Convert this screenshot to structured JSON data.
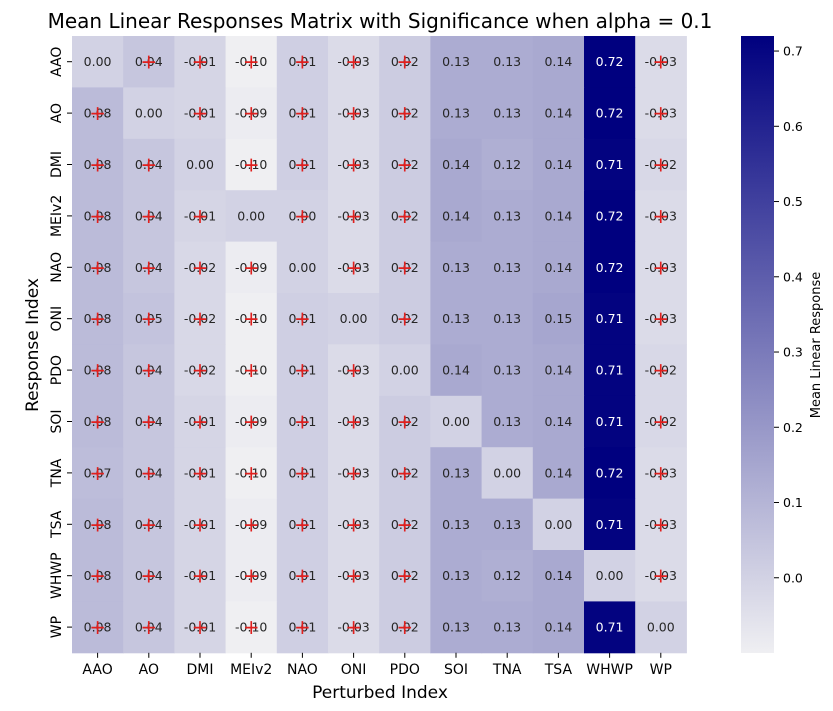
{
  "chart_data": {
    "type": "heatmap",
    "title": "Mean Linear Responses Matrix with Significance when alpha = 0.1",
    "xlabel": "Perturbed Index",
    "ylabel": "Response Index",
    "x_categories": [
      "AAO",
      "AO",
      "DMI",
      "MEIv2",
      "NAO",
      "ONI",
      "PDO",
      "SOI",
      "TNA",
      "TSA",
      "WHWP",
      "WP"
    ],
    "y_categories": [
      "AAO",
      "AO",
      "DMI",
      "MEIv2",
      "NAO",
      "ONI",
      "PDO",
      "SOI",
      "TNA",
      "TSA",
      "WHWP",
      "WP"
    ],
    "values": [
      [
        0.0,
        0.04,
        -0.01,
        -0.1,
        0.01,
        -0.03,
        0.02,
        0.13,
        0.13,
        0.14,
        0.72,
        -0.03
      ],
      [
        0.08,
        0.0,
        -0.01,
        -0.09,
        0.01,
        -0.03,
        0.02,
        0.13,
        0.13,
        0.14,
        0.72,
        -0.03
      ],
      [
        0.08,
        0.04,
        0.0,
        -0.1,
        0.01,
        -0.03,
        0.02,
        0.14,
        0.12,
        0.14,
        0.71,
        -0.02
      ],
      [
        0.08,
        0.04,
        -0.01,
        0.0,
        0.0,
        -0.03,
        0.02,
        0.14,
        0.13,
        0.14,
        0.72,
        -0.03
      ],
      [
        0.08,
        0.04,
        -0.02,
        -0.09,
        0.0,
        -0.03,
        0.02,
        0.13,
        0.13,
        0.14,
        0.72,
        -0.03
      ],
      [
        0.08,
        0.05,
        -0.02,
        -0.1,
        0.01,
        0.0,
        0.02,
        0.13,
        0.13,
        0.15,
        0.71,
        -0.03
      ],
      [
        0.08,
        0.04,
        -0.02,
        -0.1,
        0.01,
        -0.03,
        0.0,
        0.14,
        0.13,
        0.14,
        0.71,
        -0.02
      ],
      [
        0.08,
        0.04,
        -0.01,
        -0.09,
        0.01,
        -0.03,
        0.02,
        0.0,
        0.13,
        0.14,
        0.71,
        -0.02
      ],
      [
        0.07,
        0.04,
        -0.01,
        -0.1,
        0.01,
        -0.03,
        0.02,
        0.13,
        0.0,
        0.14,
        0.72,
        -0.03
      ],
      [
        0.08,
        0.04,
        -0.01,
        -0.09,
        0.01,
        -0.03,
        0.02,
        0.13,
        0.13,
        0.0,
        0.71,
        -0.03
      ],
      [
        0.08,
        0.04,
        -0.01,
        -0.09,
        0.01,
        -0.03,
        0.02,
        0.13,
        0.12,
        0.14,
        0.0,
        -0.03
      ],
      [
        0.08,
        0.04,
        -0.01,
        -0.1,
        0.01,
        -0.03,
        0.02,
        0.13,
        0.13,
        0.14,
        0.71,
        0.0
      ]
    ],
    "significance_marker": "+",
    "significance_color": "#e0201e",
    "significant_cells": "all off-diagonal cells in columns AAO through PDO and column WP",
    "colorbar": {
      "label": "Mean Linear Response",
      "vmin": -0.1,
      "vmax": 0.72,
      "ticks": [
        "0.0",
        "0.1",
        "0.2",
        "0.3",
        "0.4",
        "0.5",
        "0.6",
        "0.7"
      ],
      "colormap": [
        "#efeff2",
        "#00007f"
      ]
    },
    "grid": false,
    "legend": "none"
  }
}
